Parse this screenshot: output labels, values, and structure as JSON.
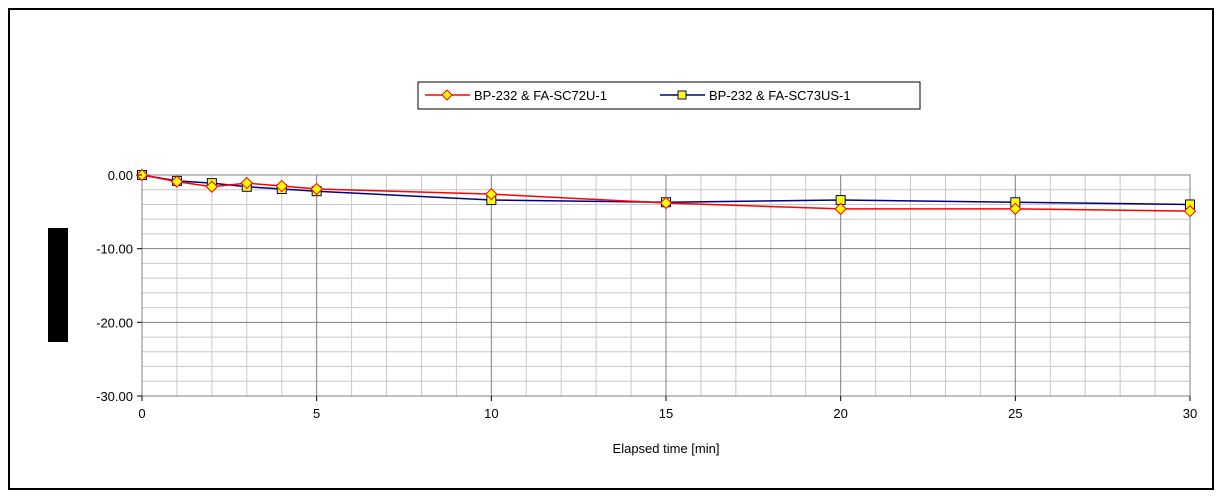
{
  "chart_data": {
    "type": "line",
    "title": "",
    "xlabel": "Elapsed time [min]",
    "ylabel": "",
    "xlim": [
      0,
      30
    ],
    "ylim": [
      -30,
      0
    ],
    "x_ticks": [
      "0",
      "5",
      "10",
      "15",
      "20",
      "25",
      "30"
    ],
    "y_ticks": [
      "0.00",
      "-10.00",
      "-20.00",
      "-30.00"
    ],
    "grid": true,
    "legend_position": "top-center",
    "series": [
      {
        "name": "BP-232 & FA-SC72U-1",
        "color": "#ff0000",
        "marker": "diamond",
        "marker_fill": "#ffff00",
        "marker_stroke": "#ff0000",
        "x": [
          0,
          1,
          2,
          3,
          4,
          5,
          10,
          15,
          20,
          25,
          30
        ],
        "y": [
          0.0,
          -0.9,
          -1.6,
          -1.1,
          -1.5,
          -1.9,
          -2.6,
          -3.8,
          -4.6,
          -4.6,
          -4.9
        ]
      },
      {
        "name": "BP-232 & FA-SC73US-1",
        "color": "#000080",
        "marker": "square",
        "marker_fill": "#ffff00",
        "marker_stroke": "#000080",
        "x": [
          0,
          1,
          2,
          3,
          4,
          5,
          10,
          15,
          20,
          25,
          30
        ],
        "y": [
          0.0,
          -0.8,
          -1.1,
          -1.6,
          -1.9,
          -2.2,
          -3.4,
          -3.7,
          -3.4,
          -3.7,
          -4.0
        ]
      }
    ]
  }
}
